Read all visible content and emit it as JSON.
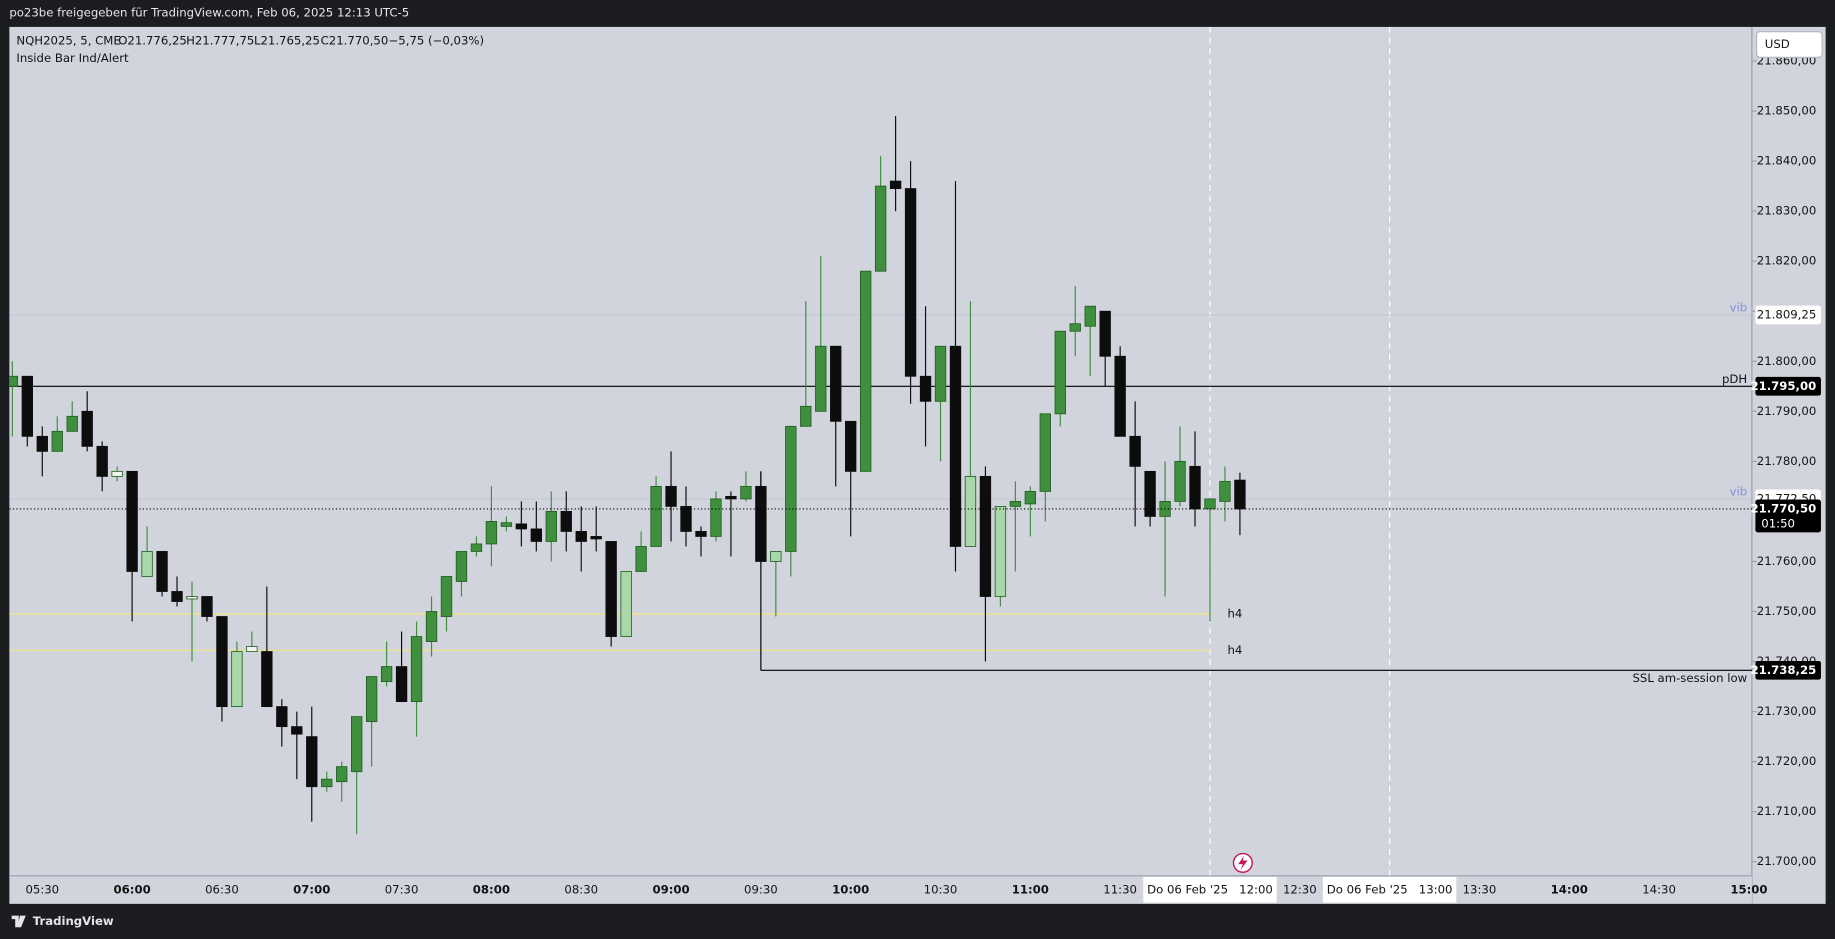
{
  "header": {
    "title": "po23be freigegeben für TradingView.com, Feb 06, 2025 12:13 UTC-5"
  },
  "legend": {
    "symbol": "NQH2025, 5, CME",
    "open": "O21.776,25",
    "high": "H21.777,75",
    "low": "L21.765,25",
    "close": "C21.770,50",
    "change": "−5,75 (−0,03%)",
    "indicator": "Inside Bar Ind/Alert"
  },
  "currency": "USD",
  "footer": {
    "brand": "TradingView"
  },
  "chart_data": {
    "type": "candlestick",
    "x": [
      "05:20",
      "05:25",
      "05:30",
      "05:35",
      "05:40",
      "05:45",
      "05:50",
      "05:55",
      "06:00",
      "06:05",
      "06:10",
      "06:15",
      "06:20",
      "06:25",
      "06:30",
      "06:35",
      "06:40",
      "06:45",
      "06:50",
      "06:55",
      "07:00",
      "07:05",
      "07:10",
      "07:15",
      "07:20",
      "07:25",
      "07:30",
      "07:35",
      "07:40",
      "07:45",
      "07:50",
      "07:55",
      "08:00",
      "08:05",
      "08:10",
      "08:15",
      "08:20",
      "08:25",
      "08:30",
      "08:35",
      "08:40",
      "08:45",
      "08:50",
      "08:55",
      "09:00",
      "09:05",
      "09:10",
      "09:15",
      "09:20",
      "09:25",
      "09:30",
      "09:35",
      "09:40",
      "09:45",
      "09:50",
      "09:55",
      "10:00",
      "10:05",
      "10:10",
      "10:15",
      "10:20",
      "10:25",
      "10:30",
      "10:35",
      "10:40",
      "10:45",
      "10:50",
      "10:55",
      "11:00",
      "11:05",
      "11:10",
      "11:15",
      "11:20",
      "11:25",
      "11:30",
      "11:35",
      "11:40",
      "11:45",
      "11:50",
      "11:55",
      "12:00",
      "12:05",
      "12:10"
    ],
    "open": [
      21795,
      21797,
      21785,
      21782,
      21786,
      21790,
      21783,
      21777,
      21778,
      21757,
      21762,
      21754,
      21752.5,
      21753,
      21749,
      21731,
      21742,
      21742,
      21731,
      21727,
      21725,
      21715,
      21716,
      21718,
      21728,
      21736,
      21739,
      21732,
      21744,
      21749,
      21756,
      21762,
      21763.5,
      21767,
      21767.5,
      21766.5,
      21764,
      21770,
      21766,
      21765,
      21764,
      21745,
      21758,
      21763,
      21775,
      21771,
      21766,
      21765,
      21773,
      21772.5,
      21775,
      21760,
      21762,
      21787,
      21790,
      21803,
      21788,
      21778,
      21818,
      21836,
      21834.5,
      21797,
      21792,
      21803,
      21763,
      21777,
      21753,
      21771,
      21771.5,
      21774,
      21789.5,
      21806,
      21807,
      21810,
      21801,
      21785,
      21778,
      21769,
      21772,
      21779,
      21770.5,
      21772,
      21776.25
    ],
    "high": [
      21800,
      21797,
      21787,
      21789,
      21792,
      21794,
      21784,
      21779,
      21778,
      21767,
      21762,
      21757,
      21756,
      21753,
      21749,
      21744,
      21746,
      21755,
      21732.5,
      21730,
      21731,
      21718,
      21720,
      21729,
      21737,
      21744,
      21746,
      21748,
      21753,
      21757,
      21762,
      21765,
      21775,
      21769,
      21772,
      21772,
      21774,
      21774,
      21771,
      21771,
      21764,
      21758,
      21766,
      21777,
      21782,
      21775,
      21767,
      21774,
      21774,
      21778,
      21778,
      21762,
      21787,
      21812,
      21821,
      21803,
      21788,
      21818,
      21841,
      21849,
      21840,
      21811,
      21803,
      21836,
      21812,
      21779,
      21771,
      21776,
      21775,
      21789.5,
      21806,
      21815,
      21811,
      21810,
      21803,
      21792,
      21778,
      21780,
      21787,
      21786,
      21772.5,
      21779,
      21777.75
    ],
    "low": [
      21785,
      21783,
      21777,
      21782,
      21786,
      21782,
      21774,
      21776,
      21748,
      21757,
      21753,
      21751,
      21740,
      21748,
      21728,
      21731,
      21742,
      21731,
      21723,
      21716.5,
      21708,
      21714,
      21712,
      21705.5,
      21719,
      21735,
      21732,
      21725,
      21741,
      21746,
      21753,
      21761,
      21759,
      21766,
      21763,
      21762,
      21760,
      21762,
      21758,
      21762,
      21743,
      21745,
      21758,
      21763,
      21764,
      21763,
      21761,
      21764,
      21761,
      21772,
      21760,
      21749,
      21757,
      21787,
      21790,
      21775,
      21765,
      21778,
      21818,
      21830,
      21791.5,
      21783,
      21780,
      21758,
      21763,
      21740,
      21751,
      21758,
      21765,
      21768,
      21787,
      21801,
      21797,
      21795,
      21785,
      21767,
      21767,
      21753,
      21771,
      21767,
      21748,
      21768,
      21765.25
    ],
    "close": [
      21797,
      21785,
      21782,
      21786,
      21789,
      21783,
      21777,
      21778,
      21758,
      21762,
      21754,
      21752,
      21753,
      21749,
      21731,
      21742,
      21743,
      21731,
      21727,
      21725.5,
      21715,
      21716.5,
      21719,
      21729,
      21737,
      21739,
      21732,
      21745,
      21750,
      21757,
      21762,
      21763.5,
      21768,
      21767.75,
      21766.5,
      21764,
      21770,
      21766,
      21764,
      21764.5,
      21745,
      21758,
      21763,
      21775,
      21771,
      21766,
      21765,
      21772.5,
      21772.5,
      21775,
      21760,
      21762,
      21787,
      21791,
      21803,
      21788,
      21778,
      21818,
      21835,
      21834.5,
      21797,
      21792,
      21803,
      21763,
      21777,
      21753,
      21771,
      21772,
      21774,
      21789.5,
      21806,
      21807.5,
      21811,
      21801,
      21785,
      21779,
      21769,
      21772,
      21780,
      21770.5,
      21772.5,
      21776,
      21770.5
    ],
    "colors": [
      "#3f8f3f",
      "#0d0d0d",
      "#0d0d0d",
      "#3f8f3f",
      "#3f8f3f",
      "#0d0d0d",
      "#0d0d0d",
      "#f2f2f2",
      "#0d0d0d",
      "#a8d8a8",
      "#0d0d0d",
      "#0d0d0d",
      "#f2f2f2",
      "#0d0d0d",
      "#0d0d0d",
      "#a8d8a8",
      "#f2f2f2",
      "#0d0d0d",
      "#0d0d0d",
      "#0d0d0d",
      "#0d0d0d",
      "#3f8f3f",
      "#3f8f3f",
      "#3f8f3f",
      "#3f8f3f",
      "#3f8f3f",
      "#0d0d0d",
      "#3f8f3f",
      "#3f8f3f",
      "#3f8f3f",
      "#3f8f3f",
      "#3f8f3f",
      "#3f8f3f",
      "#3f8f3f",
      "#0d0d0d",
      "#0d0d0d",
      "#3f8f3f",
      "#0d0d0d",
      "#0d0d0d",
      "#0d0d0d",
      "#0d0d0d",
      "#a8d8a8",
      "#3f8f3f",
      "#3f8f3f",
      "#0d0d0d",
      "#0d0d0d",
      "#0d0d0d",
      "#3f8f3f",
      "#0d0d0d",
      "#3f8f3f",
      "#0d0d0d",
      "#a8d8a8",
      "#3f8f3f",
      "#3f8f3f",
      "#3f8f3f",
      "#0d0d0d",
      "#0d0d0d",
      "#3f8f3f",
      "#3f8f3f",
      "#0d0d0d",
      "#0d0d0d",
      "#0d0d0d",
      "#3f8f3f",
      "#0d0d0d",
      "#a8d8a8",
      "#0d0d0d",
      "#a8d8a8",
      "#3f8f3f",
      "#3f8f3f",
      "#3f8f3f",
      "#3f8f3f",
      "#3f8f3f",
      "#3f8f3f",
      "#0d0d0d",
      "#0d0d0d",
      "#0d0d0d",
      "#0d0d0d",
      "#3f8f3f",
      "#3f8f3f",
      "#0d0d0d",
      "#3f8f3f",
      "#3f8f3f",
      "#0d0d0d"
    ],
    "xlim": [
      "05:19",
      "15:01"
    ],
    "xticks": [
      "05:30",
      "06:00",
      "06:30",
      "07:00",
      "07:30",
      "08:00",
      "08:30",
      "09:00",
      "09:30",
      "10:00",
      "10:30",
      "11:00",
      "11:30",
      "12:30",
      "13:30",
      "14:00",
      "14:30",
      "15:00"
    ],
    "ylim": [
      21697.2,
      21866.8
    ],
    "yticks": [
      {
        "value": 21700,
        "label": "21.700,00"
      },
      {
        "value": 21710,
        "label": "21.710,00"
      },
      {
        "value": 21720,
        "label": "21.720,00"
      },
      {
        "value": 21730,
        "label": "21.730,00"
      },
      {
        "value": 21740,
        "label": "21.740,00"
      },
      {
        "value": 21750,
        "label": "21.750,00"
      },
      {
        "value": 21760,
        "label": "21.760,00"
      },
      {
        "value": 21770,
        "label": "21.770,00"
      },
      {
        "value": 21780,
        "label": "21.780,00"
      },
      {
        "value": 21790,
        "label": "21.790,00"
      },
      {
        "value": 21800,
        "label": "21.800,00"
      },
      {
        "value": 21810,
        "label": "21.810,00"
      },
      {
        "value": 21820,
        "label": "21.820,00"
      },
      {
        "value": 21830,
        "label": "21.830,00"
      },
      {
        "value": 21840,
        "label": "21.840,00"
      },
      {
        "value": 21850,
        "label": "21.850,00"
      },
      {
        "value": 21860,
        "label": "21.860,00"
      }
    ],
    "vlines": [
      {
        "x": "12:00",
        "label": "Do 06 Feb '25   12:00"
      },
      {
        "x": "13:00",
        "label": "Do 06 Feb '25   13:00"
      }
    ],
    "levels": [
      {
        "name": "vib",
        "value": 21809.25,
        "label": "21.809,25",
        "color": "#c4c9d6"
      },
      {
        "name": "pDH",
        "value": 21795,
        "label": "21.795,00",
        "color": "#000000"
      },
      {
        "name": "vib",
        "value": 21772.5,
        "label": "21.772,50",
        "color": "#c4c9d6"
      },
      {
        "name": "h4",
        "value": 21749.5,
        "color": "#f2e27a",
        "end": "12:00"
      },
      {
        "name": "h4",
        "value": 21742.25,
        "color": "#f2e27a",
        "end": "12:00"
      },
      {
        "name": "SSL am-session low",
        "value": 21738.25,
        "label": "21.738,25",
        "color": "#000000",
        "start": "09:30"
      }
    ],
    "last": {
      "value": 21770.5,
      "label": "21.770,50",
      "countdown": "01:50"
    }
  }
}
